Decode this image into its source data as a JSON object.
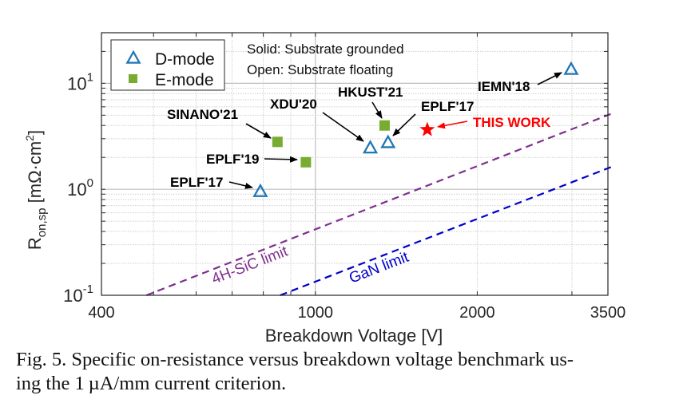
{
  "chart_data": {
    "type": "scatter",
    "title": "",
    "xlabel": "Breakdown Voltage [V]",
    "ylabel": "R",
    "ylabel_sub": "on,sp",
    "ylabel_unit": " [mΩ·cm",
    "ylabel_unit_sup": "2",
    "ylabel_unit_close": "]",
    "xscale": "log",
    "yscale": "log",
    "xlim": [
      400,
      3500
    ],
    "ylim": [
      0.1,
      30
    ],
    "grid": true,
    "x_ticks": [
      {
        "value": 400,
        "label": "400"
      },
      {
        "value": 1000,
        "label": "1000"
      },
      {
        "value": 2000,
        "label": "2000"
      },
      {
        "value": 3500,
        "label": "3500"
      }
    ],
    "y_ticks": [
      {
        "value": 0.1,
        "base": "10",
        "exp": "-1"
      },
      {
        "value": 1,
        "base": "10",
        "exp": "0"
      },
      {
        "value": 10,
        "base": "10",
        "exp": "1"
      }
    ],
    "legend": {
      "placement": "top-left",
      "entries": [
        {
          "label": "D-mode",
          "marker": "triangle-open",
          "color": "#1f77b4"
        },
        {
          "label": "E-mode",
          "marker": "square-filled",
          "color": "#77ac30"
        }
      ]
    },
    "annotation_note": {
      "line1": "Solid: Substrate grounded",
      "line2": "Open: Substrate floating"
    },
    "points": [
      {
        "label": "EPLF'17",
        "x": 790,
        "y": 0.95,
        "series": "D-mode",
        "marker": "triangle-open",
        "color": "#1f77b4"
      },
      {
        "label": "SINANO'21",
        "x": 850,
        "y": 2.8,
        "series": "E-mode",
        "marker": "square-filled",
        "color": "#77ac30"
      },
      {
        "label": "EPLF'19",
        "x": 960,
        "y": 1.8,
        "series": "E-mode",
        "marker": "square-filled",
        "color": "#77ac30"
      },
      {
        "label": "XDU'20",
        "x": 1265,
        "y": 2.45,
        "series": "D-mode",
        "marker": "triangle-open",
        "color": "#1f77b4"
      },
      {
        "label": "HKUST'21",
        "x": 1345,
        "y": 4.0,
        "series": "E-mode",
        "marker": "square-filled",
        "color": "#77ac30"
      },
      {
        "label": "EPLF'17",
        "x": 1365,
        "y": 2.75,
        "series": "D-mode",
        "marker": "triangle-open",
        "color": "#1f77b4"
      },
      {
        "label": "THIS WORK",
        "x": 1615,
        "y": 3.65,
        "series": "This work",
        "marker": "star-filled",
        "color": "#ff0000"
      },
      {
        "label": "IEMN'18",
        "x": 2990,
        "y": 13.5,
        "series": "D-mode",
        "marker": "triangle-open",
        "color": "#1f77b4"
      }
    ],
    "limit_lines": [
      {
        "name": "4H-SiC limit",
        "color": "#7e2f8e",
        "style": "dashed",
        "x": [
          485,
          3600
        ],
        "y": [
          0.1,
          5.3
        ]
      },
      {
        "name": "GaN limit",
        "color": "#0000cc",
        "style": "dashed",
        "x": [
          860,
          3580
        ],
        "y": [
          0.1,
          1.65
        ]
      }
    ]
  },
  "caption": {
    "line1": "Fig. 5. Specific on-resistance versus breakdown voltage benchmark us-",
    "line2": "ing the 1 µA/mm current criterion."
  }
}
